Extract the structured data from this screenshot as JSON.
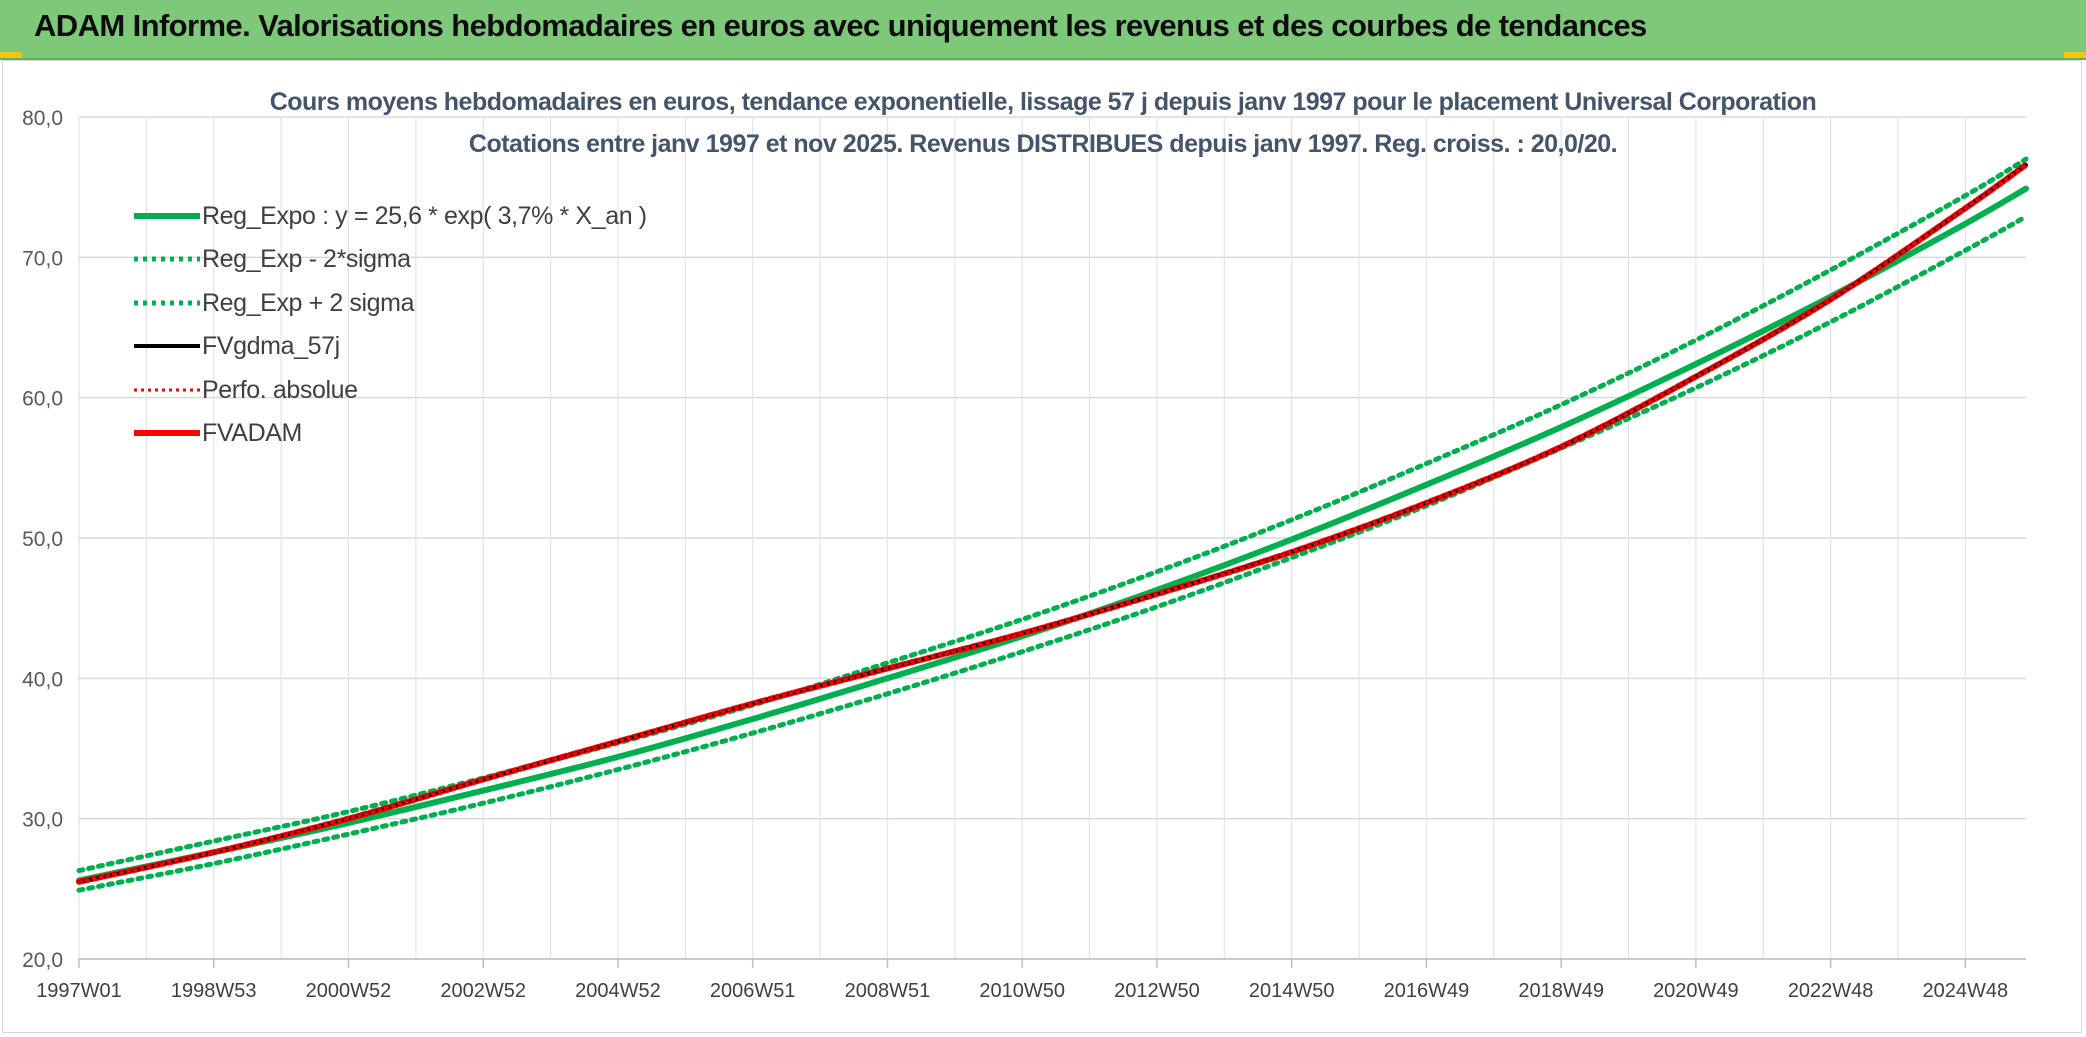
{
  "banner": {
    "title": "ADAM Informe. Valorisations hebdomadaires en euros avec uniquement les revenus et des courbes de tendances"
  },
  "colors": {
    "banner_bg": "#7ec87a",
    "title_text": "#44546a",
    "regression": "#00b050",
    "fvgdma": "#000000",
    "perfo": "#ff0000",
    "fvadam": "#ff0000",
    "grid": "#d9d9d9"
  },
  "chart_data": {
    "type": "line",
    "title": [
      "Cours moyens hebdomadaires en euros, tendance exponentielle, lissage 57 j depuis janv 1997 pour le placement Universal Corporation",
      "Cotations entre janv 1997 et nov 2025. Revenus DISTRIBUES depuis janv 1997. Reg. croiss. : 20,0/20."
    ],
    "xlabel": "",
    "ylabel": "",
    "ylim": [
      20,
      80
    ],
    "yticks": [
      "20,0",
      "30,0",
      "40,0",
      "50,0",
      "60,0",
      "70,0",
      "80,0"
    ],
    "x_range_years": [
      1997.0,
      2025.9
    ],
    "x_tick_labels": [
      "1997W01",
      "1998W53",
      "2000W52",
      "2002W52",
      "2004W52",
      "2006W51",
      "2008W51",
      "2010W50",
      "2012W50",
      "2014W50",
      "2016W49",
      "2018W49",
      "2020W49",
      "2022W48",
      "2024W48"
    ],
    "x_tick_years": [
      1997.0,
      1999.0,
      2001.0,
      2003.0,
      2005.0,
      2007.0,
      2009.0,
      2011.0,
      2013.0,
      2015.0,
      2017.0,
      2019.0,
      2021.0,
      2023.0,
      2025.0
    ],
    "grid": true,
    "legend_position": "top-left",
    "series": [
      {
        "name": "Reg_Expo : y = 25,6 * exp( 3,7% *  X_an )",
        "style": "solid-thick",
        "color": "#00b050",
        "x": [
          1997,
          1999,
          2001,
          2003,
          2005,
          2007,
          2009,
          2011,
          2013,
          2015,
          2017,
          2019,
          2021,
          2023,
          2025,
          2025.9
        ],
        "values": [
          25.6,
          27.6,
          29.7,
          32.0,
          34.4,
          37.1,
          40.0,
          43.0,
          46.3,
          49.9,
          53.8,
          57.9,
          62.4,
          67.2,
          72.4,
          74.9
        ]
      },
      {
        "name": "Reg_Exp - 2*sigma",
        "style": "dotted",
        "color": "#00b050",
        "x": [
          1997,
          1999,
          2001,
          2003,
          2005,
          2007,
          2009,
          2011,
          2013,
          2015,
          2017,
          2019,
          2021,
          2023,
          2025,
          2025.9
        ],
        "values": [
          24.9,
          26.8,
          28.9,
          31.1,
          33.5,
          36.1,
          38.9,
          41.9,
          45.1,
          48.6,
          52.3,
          56.4,
          60.7,
          65.4,
          70.5,
          72.9
        ]
      },
      {
        "name": "Reg_Exp + 2 sigma",
        "style": "dotted",
        "color": "#00b050",
        "x": [
          1997,
          1999,
          2001,
          2003,
          2005,
          2007,
          2009,
          2011,
          2013,
          2015,
          2017,
          2019,
          2021,
          2023,
          2025,
          2025.9
        ],
        "values": [
          26.3,
          28.4,
          30.5,
          32.9,
          35.4,
          38.1,
          41.1,
          44.2,
          47.6,
          51.3,
          55.3,
          59.5,
          64.1,
          69.1,
          74.4,
          77.0
        ]
      },
      {
        "name": "FVgdma_57j",
        "style": "solid",
        "color": "#000000",
        "x": [
          1997,
          1999,
          2001,
          2003,
          2005,
          2007,
          2009,
          2011,
          2013,
          2015,
          2017,
          2019,
          2021,
          2023,
          2025,
          2025.9
        ],
        "values": [
          25.5,
          27.6,
          30.0,
          32.8,
          35.5,
          38.2,
          40.7,
          43.2,
          46.0,
          49.0,
          52.5,
          56.5,
          61.5,
          67.0,
          73.5,
          76.6
        ]
      },
      {
        "name": "Perfo. absolue",
        "style": "dotted",
        "color": "#ff0000",
        "x": [
          1997,
          1999,
          2001,
          2003,
          2005,
          2007,
          2009,
          2011,
          2013,
          2015,
          2017,
          2019,
          2021,
          2023,
          2025,
          2025.9
        ],
        "values": [
          25.5,
          27.6,
          30.0,
          32.8,
          35.5,
          38.2,
          40.7,
          43.2,
          46.0,
          49.0,
          52.5,
          56.5,
          61.5,
          67.0,
          73.5,
          76.6
        ]
      },
      {
        "name": "FVADAM",
        "style": "solid-thick",
        "color": "#ff0000",
        "x": [
          1997,
          1999,
          2001,
          2003,
          2005,
          2007,
          2009,
          2011,
          2013,
          2015,
          2017,
          2019,
          2021,
          2023,
          2025,
          2025.9
        ],
        "values": [
          25.5,
          27.6,
          30.0,
          32.8,
          35.5,
          38.2,
          40.7,
          43.2,
          46.0,
          49.0,
          52.5,
          56.5,
          61.5,
          67.0,
          73.5,
          76.6
        ]
      }
    ]
  }
}
